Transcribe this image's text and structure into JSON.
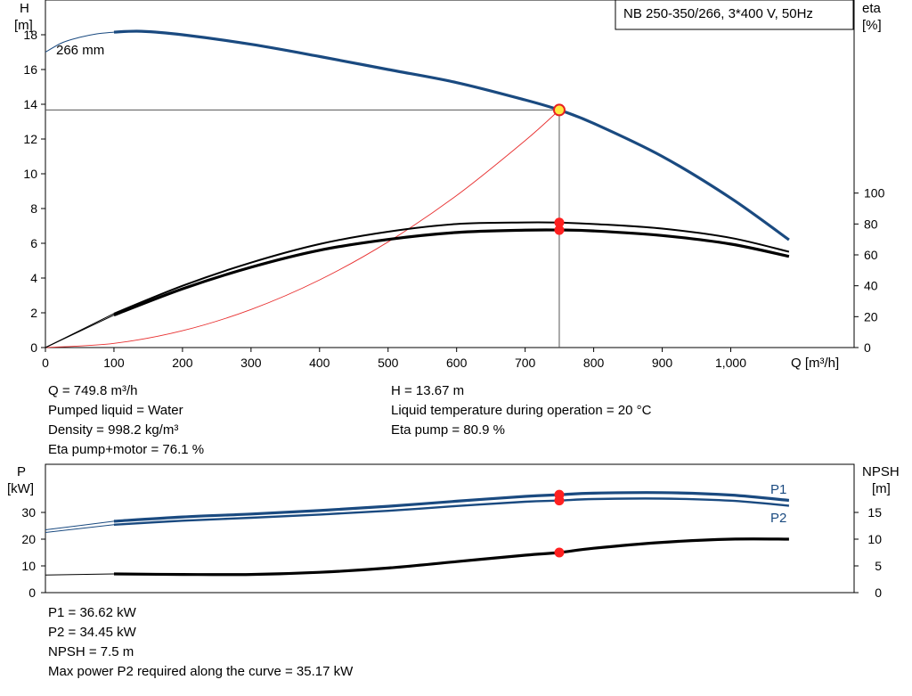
{
  "chart_data": [
    {
      "type": "line",
      "title": "NB 250-350/266, 3*400 V, 50Hz",
      "xlabel": "Q [m³/h]",
      "y_left_label_top": "H",
      "y_left_label_bottom": "[m]",
      "y_right_label_top": "eta",
      "y_right_label_bottom": "[%]",
      "xlim": [
        0,
        1180
      ],
      "ylim_left": [
        0,
        20
      ],
      "ylim_right": [
        0,
        225
      ],
      "x_ticks": [
        "0",
        "100",
        "200",
        "300",
        "400",
        "500",
        "600",
        "700",
        "800",
        "900",
        "1,000"
      ],
      "y_left_ticks": [
        "0",
        "2",
        "4",
        "6",
        "8",
        "10",
        "12",
        "14",
        "16",
        "18"
      ],
      "y_right_ticks": [
        "0",
        "20",
        "40",
        "60",
        "80",
        "100"
      ],
      "curve_label": "266 mm",
      "series": [
        {
          "key": "head",
          "axis": "left",
          "x": [
            100,
            140,
            200,
            300,
            400,
            500,
            600,
            700,
            750,
            800,
            900,
            1000,
            1085
          ],
          "y": [
            18.15,
            18.2,
            18.0,
            17.45,
            16.75,
            16.0,
            15.25,
            14.25,
            13.67,
            12.9,
            11.0,
            8.6,
            6.2
          ]
        },
        {
          "key": "head_extension",
          "axis": "left",
          "x": [
            0,
            25,
            50,
            75,
            100
          ],
          "y": [
            17.0,
            17.55,
            17.85,
            18.05,
            18.15
          ]
        },
        {
          "key": "eta_pump",
          "axis": "right",
          "x": [
            0,
            100,
            200,
            300,
            400,
            500,
            600,
            700,
            750,
            800,
            900,
            1000,
            1085
          ],
          "y": [
            0,
            22,
            40,
            55,
            67,
            75,
            80,
            81,
            80.9,
            80,
            77,
            71,
            62
          ]
        },
        {
          "key": "eta_pump_motor",
          "axis": "right",
          "x": [
            0,
            100,
            200,
            300,
            400,
            500,
            600,
            700,
            750,
            800,
            900,
            1000,
            1085
          ],
          "y": [
            0,
            21,
            38,
            52,
            63,
            70,
            74.5,
            76,
            76.1,
            75.5,
            72.5,
            67,
            59
          ]
        },
        {
          "key": "system_curve",
          "axis": "left",
          "x": [
            0,
            100,
            200,
            300,
            400,
            500,
            600,
            700,
            749.8
          ],
          "y": [
            0,
            0.24,
            0.97,
            2.19,
            3.89,
            6.08,
            8.75,
            11.91,
            13.67
          ]
        }
      ],
      "operating_point": {
        "Q": 749.8,
        "H": 13.67,
        "eta_pump": 80.9,
        "eta_pump_motor": 76.1
      }
    },
    {
      "type": "line",
      "y_left_label_top": "P",
      "y_left_label_bottom": "[kW]",
      "y_right_label_top": "NPSH",
      "y_right_label_bottom": "[m]",
      "xlim": [
        0,
        1180
      ],
      "ylim_left": [
        0,
        48
      ],
      "ylim_right": [
        0,
        24
      ],
      "y_left_ticks": [
        "0",
        "10",
        "20",
        "30"
      ],
      "y_right_ticks": [
        "0",
        "5",
        "10",
        "15"
      ],
      "series": [
        {
          "key": "P1",
          "name": "P1",
          "axis": "left",
          "x": [
            0,
            100,
            200,
            300,
            400,
            500,
            600,
            700,
            750,
            800,
            900,
            1000,
            1085
          ],
          "y": [
            23.5,
            26.7,
            28.3,
            29.4,
            30.7,
            32.3,
            34.2,
            36.0,
            36.62,
            37.2,
            37.4,
            36.5,
            34.5
          ]
        },
        {
          "key": "P2",
          "name": "P2",
          "axis": "left",
          "x": [
            0,
            100,
            200,
            300,
            400,
            500,
            600,
            700,
            750,
            800,
            900,
            1000,
            1085
          ],
          "y": [
            22.5,
            25.4,
            26.9,
            28.0,
            29.2,
            30.6,
            32.4,
            34.0,
            34.45,
            35.0,
            35.17,
            34.4,
            32.5
          ]
        },
        {
          "key": "NPSH",
          "axis": "right",
          "x": [
            0,
            100,
            200,
            300,
            400,
            500,
            600,
            700,
            750,
            800,
            900,
            1000,
            1085
          ],
          "y": [
            3.3,
            3.5,
            3.4,
            3.4,
            3.8,
            4.6,
            5.8,
            7.0,
            7.5,
            8.3,
            9.4,
            10.0,
            10.0
          ]
        }
      ],
      "operating_point": {
        "Q": 749.8,
        "P1": 36.62,
        "P2": 34.45,
        "NPSH": 7.5
      }
    }
  ],
  "info_top": {
    "left": [
      "Q = 749.8 m³/h",
      "Pumped liquid = Water",
      "Density = 998.2 kg/m³",
      "Eta pump+motor = 76.1 %"
    ],
    "right": [
      "H = 13.67 m",
      "Liquid temperature during operation = 20 °C",
      "Eta pump = 80.9 %"
    ]
  },
  "info_bottom": [
    "P1 = 36.62 kW",
    "P2 = 34.45 kW",
    "NPSH = 7.5 m",
    "Max power P2 required along the curve = 35.17 kW"
  ],
  "colors": {
    "head": "#1a4a80",
    "p_lines": "#1a4a80",
    "system": "#e83030",
    "marker": "#ff2020",
    "op_fill": "#ffe840",
    "op_stroke": "#e82020",
    "grid": "#000000"
  }
}
